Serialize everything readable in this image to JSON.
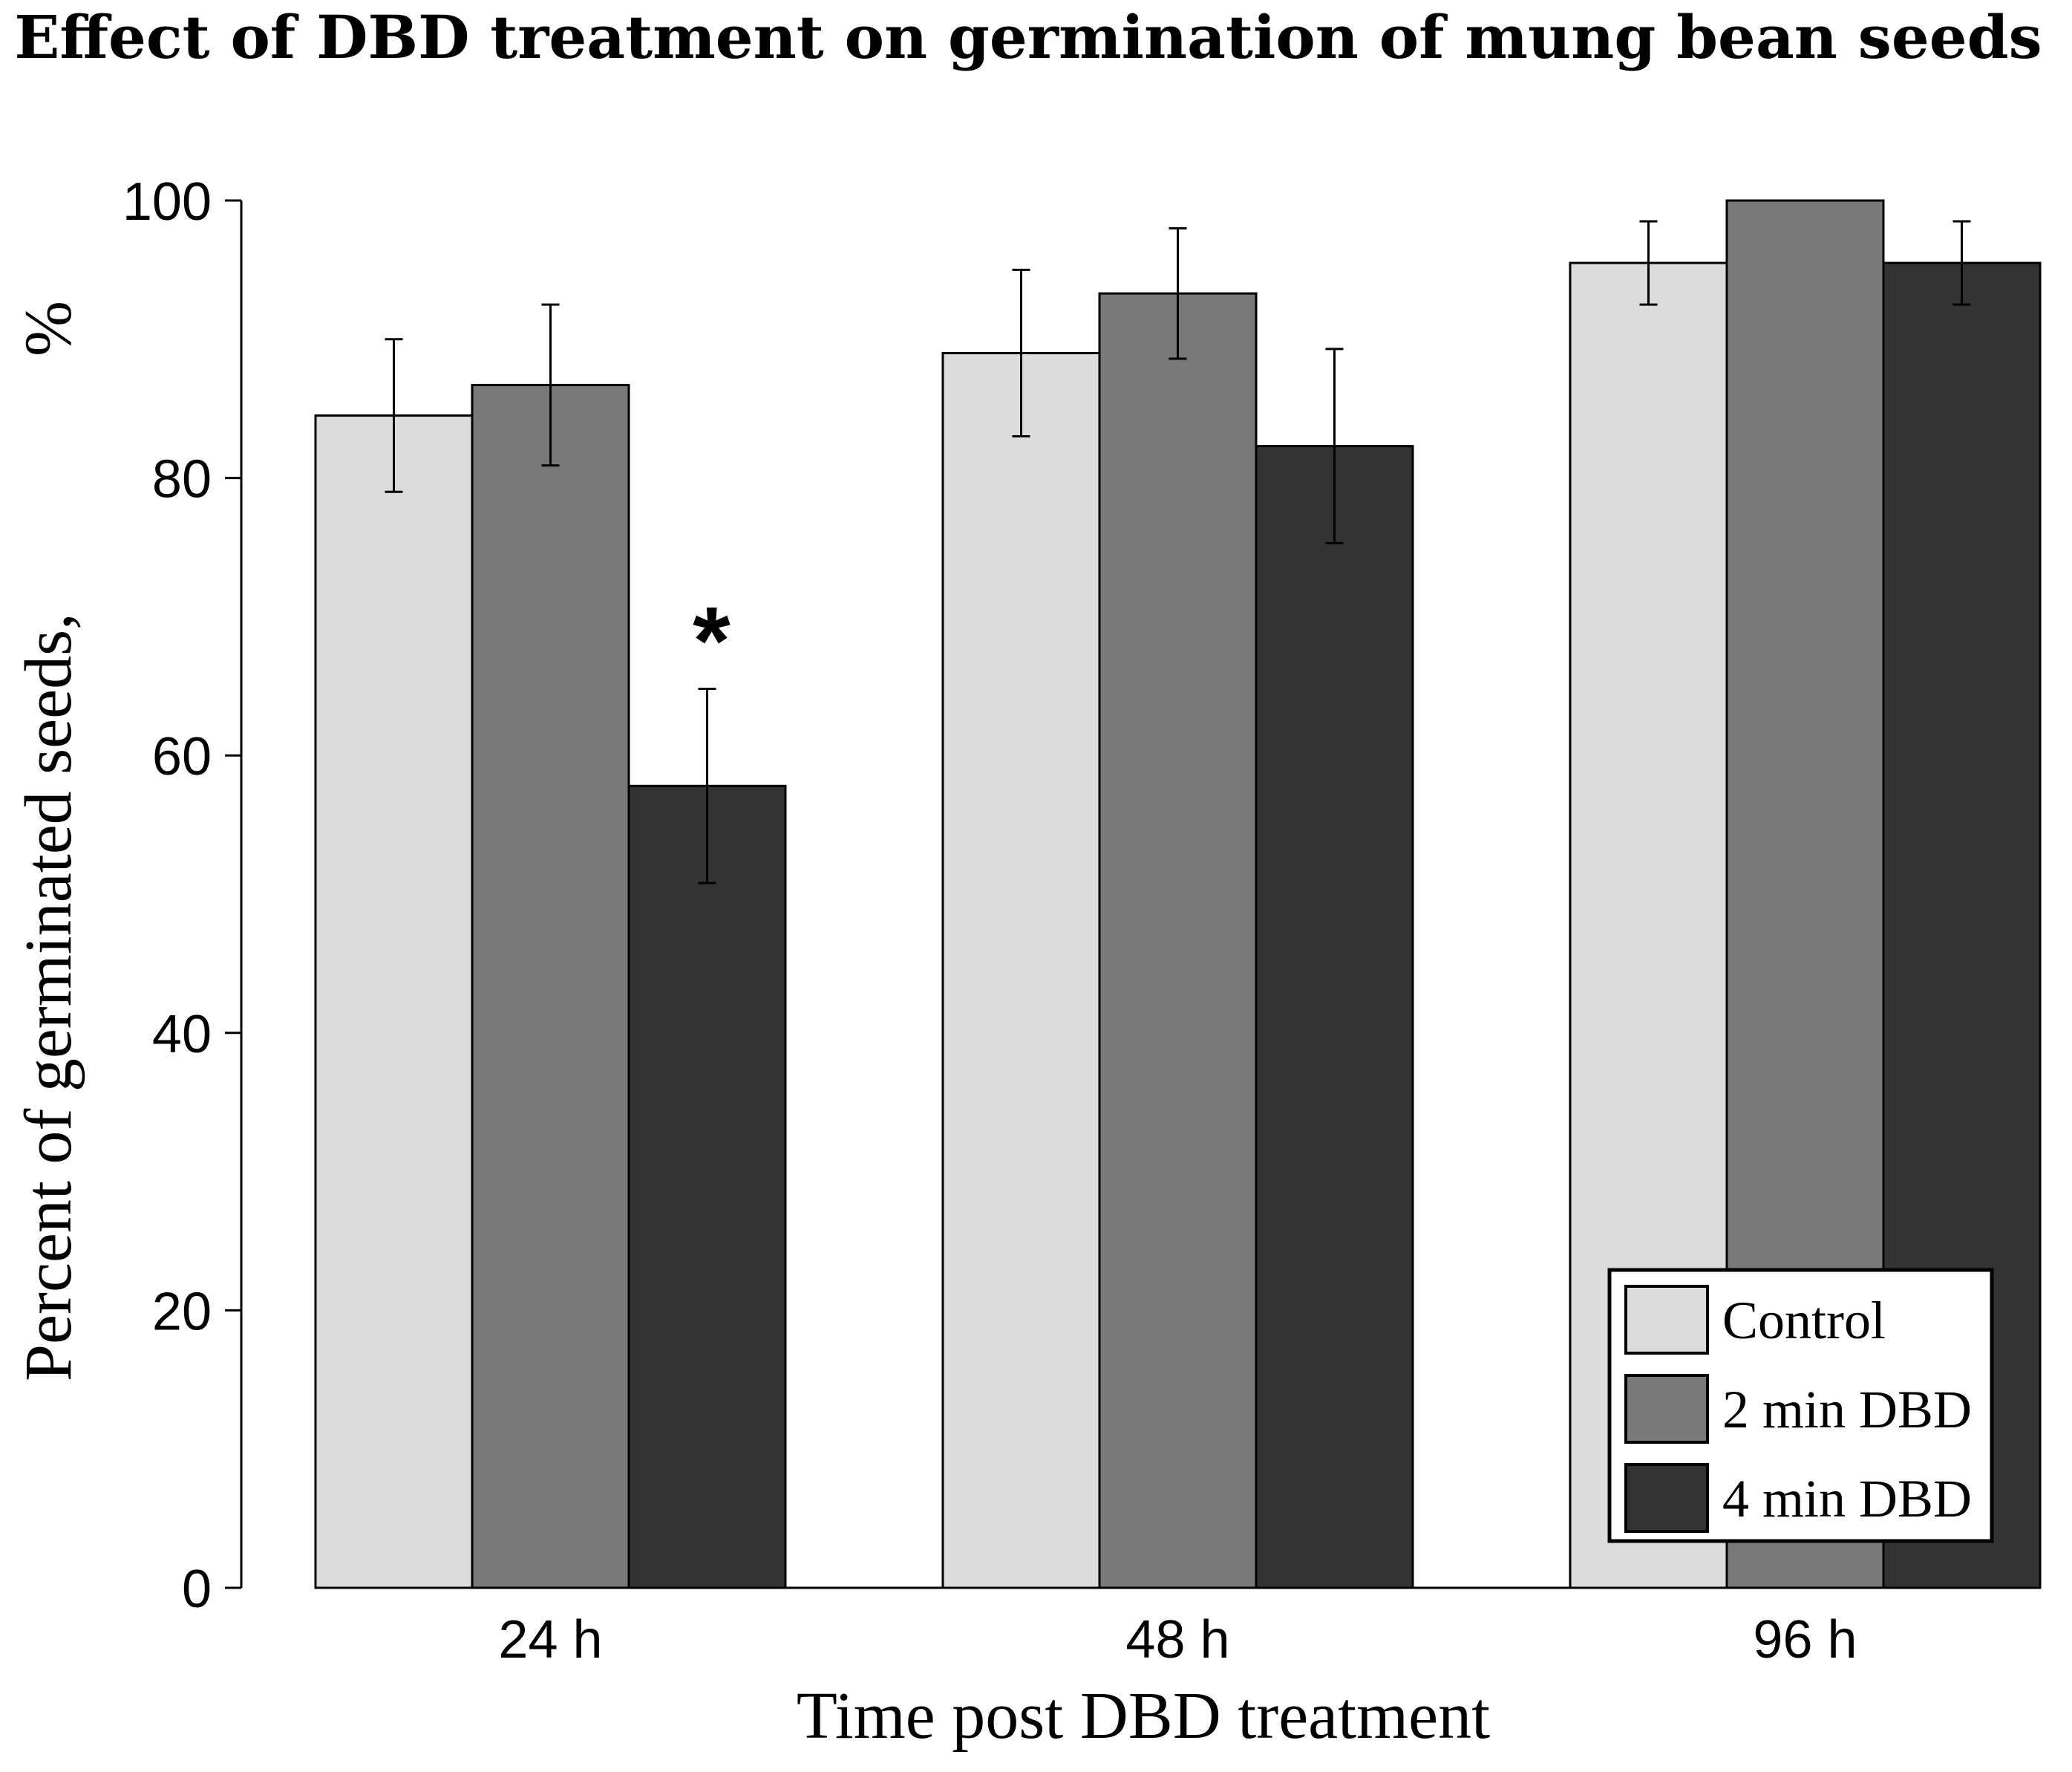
{
  "chart_data": {
    "type": "bar",
    "title": "Effect of DBD treatment on germination of mung bean seeds",
    "xlabel": "Time post DBD treatment",
    "ylabel": "Percent of germinated seeds,",
    "ylabel_unit": "%",
    "categories": [
      "24 h",
      "48 h",
      "96 h"
    ],
    "ylim": [
      0,
      100
    ],
    "yticks": [
      "0",
      "20",
      "40",
      "60",
      "80",
      "100"
    ],
    "series": [
      {
        "name": "Control",
        "color": "#dcdcdc",
        "values": [
          84.5,
          89,
          95.5
        ],
        "errors": [
          5.5,
          6,
          3
        ]
      },
      {
        "name": "2 min DBD",
        "color": "#787878",
        "values": [
          86.7,
          93.3,
          100
        ],
        "errors": [
          5.8,
          4.7,
          0
        ]
      },
      {
        "name": "4 min DBD",
        "color": "#333333",
        "values": [
          57.8,
          82.3,
          95.5
        ],
        "errors": [
          7,
          7,
          3
        ]
      }
    ],
    "annotations": [
      {
        "text": "*",
        "category": "24 h",
        "series": "4 min DBD"
      }
    ],
    "legend_position": "bottom-right",
    "grid": false
  }
}
